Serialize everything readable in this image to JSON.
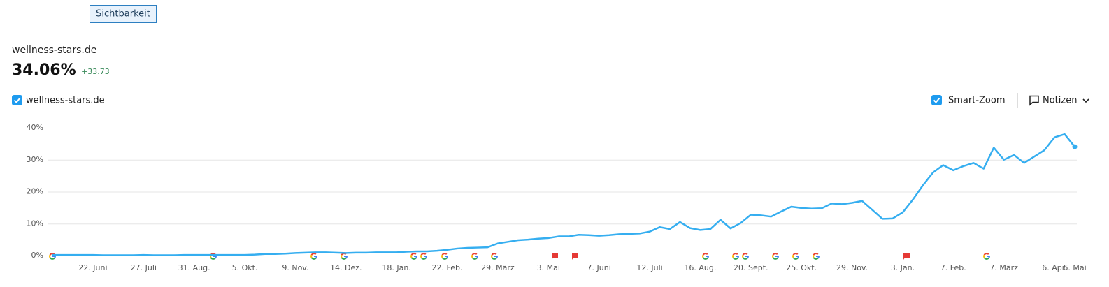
{
  "header": {
    "tab": "Sichtbarkeit"
  },
  "summary": {
    "domain": "wellness-stars.de",
    "value": "34.06%",
    "change": "+33.73"
  },
  "controls": {
    "smart_zoom": "Smart-Zoom",
    "notes": "Notizen"
  },
  "chart_data": {
    "type": "line",
    "categories": [
      null,
      null,
      null,
      null,
      "22. Juni",
      null,
      null,
      null,
      null,
      "27. Juli",
      null,
      null,
      null,
      null,
      "31. Aug.",
      null,
      null,
      null,
      null,
      "5. Okt.",
      null,
      null,
      null,
      null,
      "9. Nov.",
      null,
      null,
      null,
      null,
      "14. Dez.",
      null,
      null,
      null,
      null,
      "18. Jan.",
      null,
      null,
      null,
      null,
      "22. Feb.",
      null,
      null,
      null,
      null,
      "29. März",
      null,
      null,
      null,
      null,
      "3. Mai",
      null,
      null,
      null,
      null,
      "7. Juni",
      null,
      null,
      null,
      null,
      "12. Juli",
      null,
      null,
      null,
      null,
      "16. Aug.",
      null,
      null,
      null,
      null,
      "20. Sept.",
      null,
      null,
      null,
      null,
      "25. Okt.",
      null,
      null,
      null,
      null,
      "29. Nov.",
      null,
      null,
      null,
      null,
      "3. Jan.",
      null,
      null,
      null,
      null,
      "7. Feb.",
      null,
      null,
      null,
      null,
      "7. März",
      null,
      null,
      null,
      null,
      "6. Apr.",
      null,
      "6. Mai"
    ],
    "series": [
      {
        "name": "wellness-stars.de",
        "color": "#35aef0",
        "values": [
          0.2,
          0.2,
          0.2,
          0.2,
          0.2,
          0.1,
          0.1,
          0.1,
          0.1,
          0.2,
          0.1,
          0.1,
          0.1,
          0.2,
          0.2,
          0.2,
          0.2,
          0.2,
          0.2,
          0.2,
          0.3,
          0.5,
          0.5,
          0.6,
          0.8,
          0.9,
          1.0,
          1.0,
          0.9,
          0.8,
          0.9,
          0.9,
          1.0,
          1.0,
          1.0,
          1.2,
          1.3,
          1.3,
          1.5,
          1.8,
          2.2,
          2.4,
          2.5,
          2.6,
          3.8,
          4.3,
          4.8,
          5.0,
          5.3,
          5.5,
          6.0,
          6.0,
          6.5,
          6.4,
          6.2,
          6.4,
          6.7,
          6.8,
          6.9,
          7.5,
          8.9,
          8.3,
          10.5,
          8.6,
          8.0,
          8.3,
          11.2,
          8.5,
          10.2,
          12.8,
          12.6,
          12.2,
          13.8,
          15.3,
          14.9,
          14.7,
          14.8,
          16.3,
          16.1,
          16.5,
          17.1,
          14.3,
          11.5,
          11.6,
          13.5,
          17.5,
          22,
          26,
          28.3,
          26.7,
          28,
          29,
          27.2,
          33.8,
          30,
          31.5,
          29,
          31,
          33,
          37,
          38,
          34.06
        ]
      }
    ],
    "ylim": [
      0,
      40
    ],
    "yticks": [
      {
        "value": 0,
        "label": "0%"
      },
      {
        "value": 10,
        "label": "10%"
      },
      {
        "value": 20,
        "label": "20%"
      },
      {
        "value": 30,
        "label": "30%"
      },
      {
        "value": 40,
        "label": "40%"
      }
    ],
    "grid": true
  }
}
